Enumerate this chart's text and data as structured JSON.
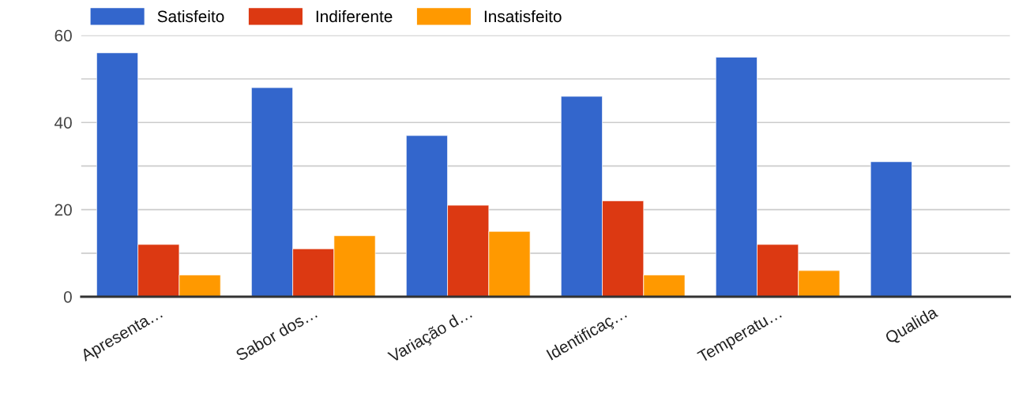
{
  "chart_data": {
    "type": "bar",
    "categories": [
      "Apresenta…",
      "Sabor dos…",
      "Variação d…",
      "Identificaç…",
      "Temperatu…",
      "Qualida"
    ],
    "series": [
      {
        "name": "Satisfeito",
        "color": "#3366cc",
        "values": [
          56,
          48,
          37,
          46,
          55,
          31
        ]
      },
      {
        "name": "Indiferente",
        "color": "#dc3912",
        "values": [
          12,
          11,
          21,
          22,
          12,
          null
        ]
      },
      {
        "name": "Insatisfeito",
        "color": "#ff9900",
        "values": [
          5,
          14,
          15,
          5,
          6,
          null
        ]
      }
    ],
    "ylim": [
      0,
      60
    ],
    "yticks": [
      0,
      {
        "value": 10,
        "label": null
      },
      20,
      {
        "value": 30,
        "label": null
      },
      40,
      {
        "value": 50,
        "label": null
      },
      60
    ],
    "grid": "y",
    "legend": "top left"
  }
}
